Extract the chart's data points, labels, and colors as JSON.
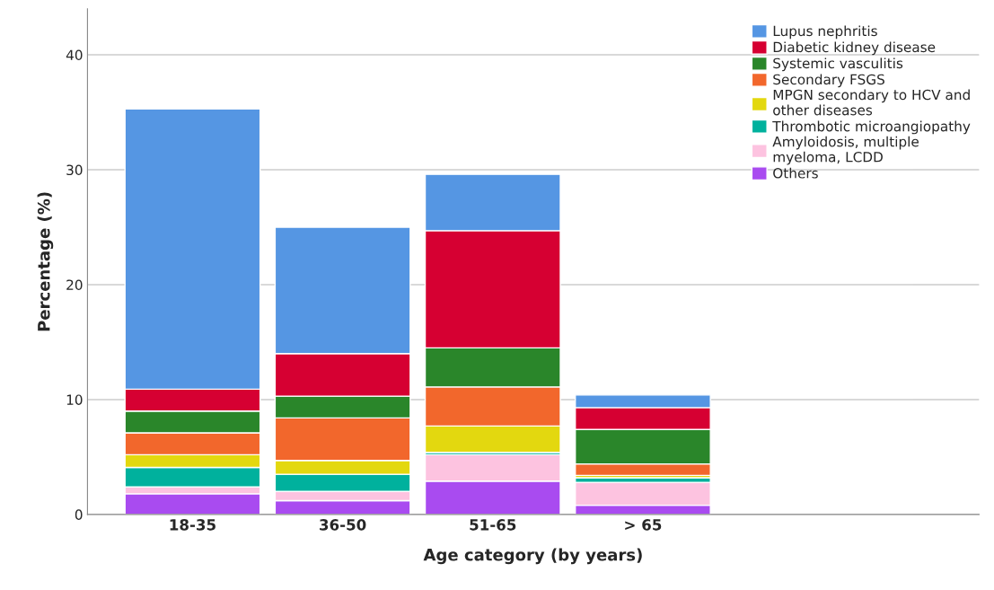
{
  "chart_data": {
    "type": "bar",
    "stacked": true,
    "xlabel": "Age category (by years)",
    "ylabel": "Percentage (%)",
    "categories": [
      "18-35",
      "36-50",
      "51-65",
      "> 65"
    ],
    "series": [
      {
        "name": "Others",
        "color": "#a94bf0",
        "values": [
          1.8,
          1.2,
          2.9,
          0.8
        ]
      },
      {
        "name": "Amyloidosis, multiple\nmyeloma, LCDD",
        "color": "#fdc3e0",
        "values": [
          0.6,
          0.8,
          2.3,
          2.0
        ]
      },
      {
        "name": "Thrombotic microangiopathy",
        "color": "#00b19d",
        "values": [
          1.7,
          1.5,
          0.2,
          0.4
        ]
      },
      {
        "name": "MPGN secondary to HCV and\nother diseases",
        "color": "#e3d80f",
        "values": [
          1.1,
          1.2,
          2.3,
          0.2
        ]
      },
      {
        "name": "Secondary FSGS",
        "color": "#f2672c",
        "values": [
          1.9,
          3.7,
          3.4,
          1.0
        ]
      },
      {
        "name": "Systemic vasculitis",
        "color": "#2a862a",
        "values": [
          1.9,
          1.9,
          3.4,
          3.0
        ]
      },
      {
        "name": "Diabetic kidney disease",
        "color": "#d60032",
        "values": [
          1.9,
          3.7,
          10.2,
          1.9
        ]
      },
      {
        "name": "Lupus nephritis",
        "color": "#5596e3",
        "values": [
          24.4,
          11.0,
          4.9,
          1.1
        ]
      }
    ],
    "ylim": [
      0,
      44
    ],
    "yticks": [
      0,
      10,
      20,
      30,
      40
    ],
    "grid": "y",
    "legend": "top right"
  }
}
